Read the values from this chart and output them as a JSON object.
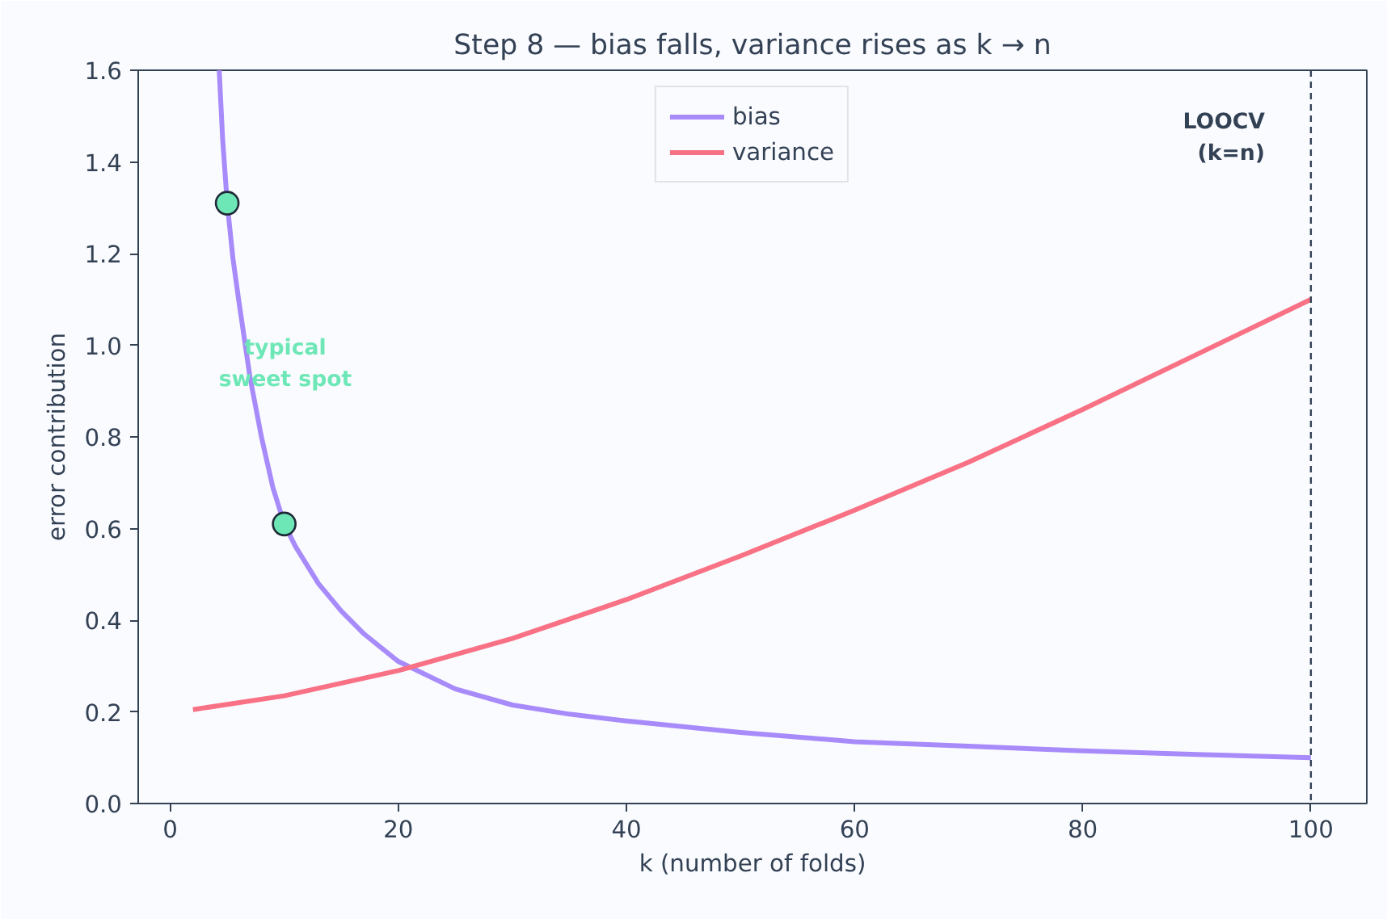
{
  "chart_data": {
    "type": "line",
    "title": "Step 8 — bias falls, variance rises as k → n",
    "xlabel": "k (number of folds)",
    "ylabel": "error contribution",
    "xlim": [
      -2.8,
      104.9
    ],
    "ylim": [
      0,
      1.6
    ],
    "xticks": [
      0,
      20,
      40,
      60,
      80,
      100
    ],
    "yticks": [
      {
        "value": 0,
        "label": "0.0"
      },
      0.2,
      0.4,
      0.6,
      0.8,
      {
        "value": 1,
        "label": "1.0"
      },
      1.2,
      1.4,
      1.6
    ],
    "series": [
      {
        "name": "bias",
        "color": "#a78bfa",
        "x": [
          4.3,
          4.6,
          5,
          5.5,
          6,
          7,
          8,
          9,
          10,
          11,
          12,
          13,
          15,
          17,
          20,
          25,
          30,
          35,
          40,
          50,
          60,
          70,
          80,
          90,
          100
        ],
        "values": [
          1.6,
          1.45,
          1.31,
          1.19,
          1.1,
          0.93,
          0.8,
          0.69,
          0.61,
          0.56,
          0.52,
          0.48,
          0.42,
          0.37,
          0.31,
          0.25,
          0.215,
          0.195,
          0.18,
          0.155,
          0.135,
          0.125,
          0.115,
          0.107,
          0.1
        ]
      },
      {
        "name": "variance",
        "color": "#f87185",
        "x": [
          2,
          10,
          20,
          30,
          40,
          50,
          60,
          70,
          80,
          90,
          100
        ],
        "values": [
          0.205,
          0.235,
          0.29,
          0.36,
          0.445,
          0.54,
          0.64,
          0.745,
          0.86,
          0.98,
          1.1
        ]
      },
      {
        "type": "scatter",
        "marker": "circle",
        "color": "#6ee7b7",
        "x": [
          5,
          10
        ],
        "values": [
          1.31,
          0.61
        ]
      }
    ],
    "annotations": [
      "typical\nsweet spot",
      "LOOCV\n(k=n)"
    ],
    "ref_lines": [
      {
        "axis": "x",
        "value": 100,
        "line_style": "dashed",
        "color": "#334155"
      }
    ],
    "legend": "top",
    "grid": false,
    "line_style": "solid"
  }
}
